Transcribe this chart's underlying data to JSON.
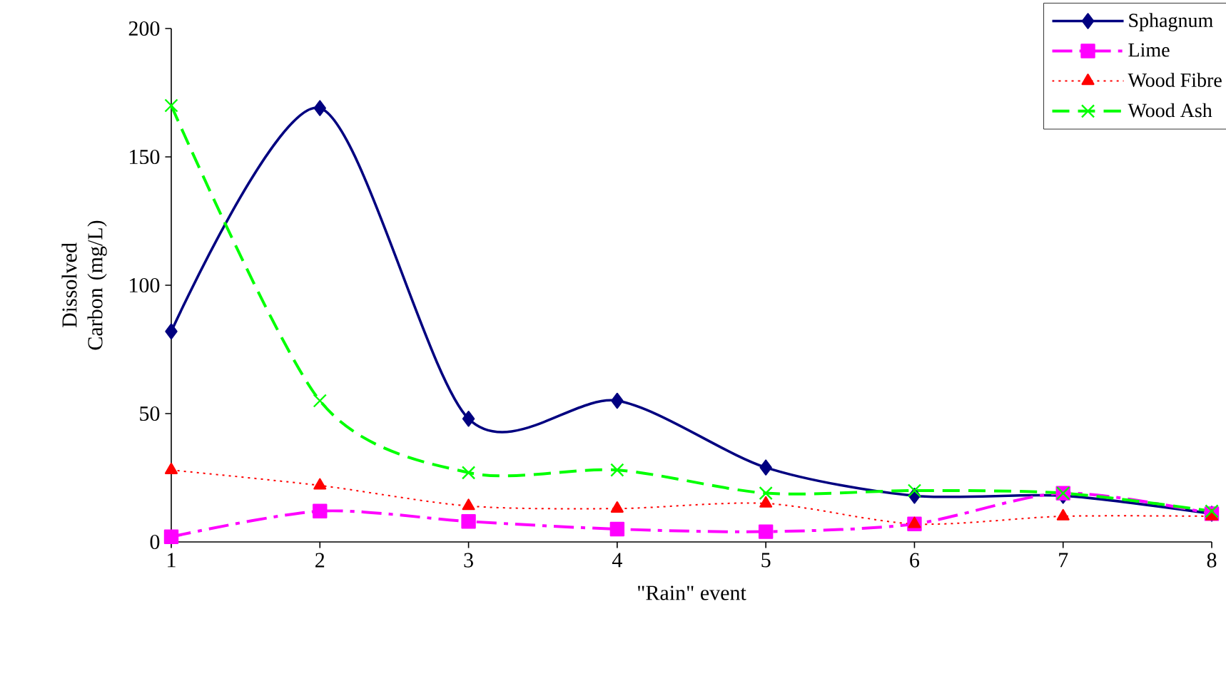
{
  "chart_data": {
    "type": "line",
    "xlabel": "\"Rain\" event",
    "ylabel": "Dissolved Carbon (mg/L)",
    "x": [
      1,
      2,
      3,
      4,
      5,
      6,
      7,
      8
    ],
    "xlim": [
      1,
      8
    ],
    "xticks": [
      1,
      2,
      3,
      4,
      5,
      6,
      7,
      8
    ],
    "ylim": [
      0,
      200
    ],
    "yticks": [
      0,
      50,
      100,
      150,
      200
    ],
    "legend": "top right",
    "series": [
      {
        "name": "Sphagnum",
        "color": "#000080",
        "marker": "diamond",
        "line_style": "solid",
        "values": [
          82,
          169,
          48,
          55,
          29,
          18,
          18,
          11
        ]
      },
      {
        "name": "Lime",
        "color": "#ff00ff",
        "marker": "square",
        "line_style": "dashdot",
        "values": [
          2,
          12,
          8,
          5,
          4,
          7,
          19,
          11
        ]
      },
      {
        "name": "Wood Fibre",
        "color": "#ff0000",
        "marker": "triangle",
        "line_style": "dotted",
        "values": [
          28,
          22,
          14,
          13,
          15,
          7,
          10,
          10
        ]
      },
      {
        "name": "Wood Ash",
        "color": "#00ff00",
        "marker": "cross",
        "line_style": "dashed",
        "values": [
          170,
          55,
          27,
          28,
          19,
          20,
          19,
          12
        ]
      }
    ]
  }
}
